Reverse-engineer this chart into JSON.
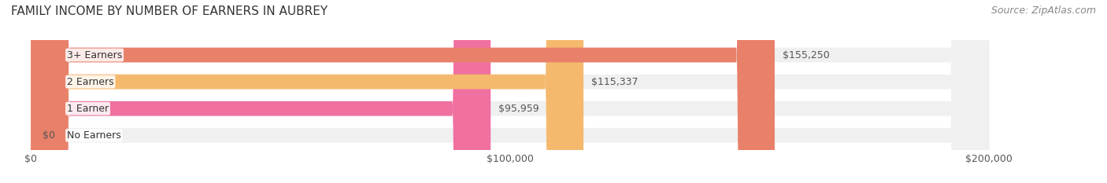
{
  "title": "FAMILY INCOME BY NUMBER OF EARNERS IN AUBREY",
  "source": "Source: ZipAtlas.com",
  "categories": [
    "No Earners",
    "1 Earner",
    "2 Earners",
    "3+ Earners"
  ],
  "values": [
    0,
    95959,
    115337,
    155250
  ],
  "bar_colors": [
    "#a8a8d8",
    "#f070a0",
    "#f5b96e",
    "#e8806a"
  ],
  "bar_bg_color": "#f0f0f0",
  "value_labels": [
    "$0",
    "$95,959",
    "$115,337",
    "$155,250"
  ],
  "xlim": [
    0,
    200000
  ],
  "xticks": [
    0,
    100000,
    200000
  ],
  "xtick_labels": [
    "$0",
    "$100,000",
    "$200,000"
  ],
  "background_color": "#ffffff",
  "title_fontsize": 11,
  "source_fontsize": 9,
  "bar_height": 0.55,
  "label_fontsize": 9,
  "tick_fontsize": 9
}
